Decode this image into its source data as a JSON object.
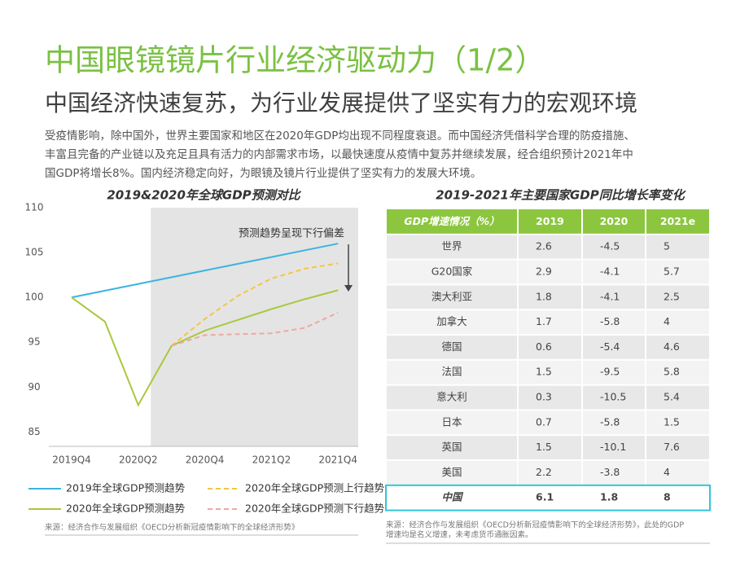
{
  "header": {
    "title": "中国眼镜镜片行业经济驱动力（1/2）",
    "subtitle": "中国经济快速复苏，为行业发展提供了坚实有力的宏观环境"
  },
  "paragraph": [
    "受疫情影响，除中国外，世界主要国家和地区在2020年GDP均出现不同程度衰退。而中国经济凭借科学合理的防疫措施、",
    "丰富且完备的产业链以及充足且具有活力的内部需求市场，以最快速度从疫情中复苏并继续发展，经合组织预计2021年中",
    "国GDP将增长8%。国内经济稳定向好，为眼镜及镜片行业提供了坚实有力的发展大环境。"
  ],
  "chart_data": {
    "type": "line",
    "title": "2019&2020年全球GDP预测对比",
    "categories": [
      "2019Q4",
      null,
      "2020Q2",
      null,
      "2020Q4",
      null,
      "2021Q2",
      null,
      "2021Q4"
    ],
    "series": [
      {
        "name": "2019年全球GDP预测趋势",
        "color": "#3cb4e0",
        "dashed": false,
        "values": [
          100,
          100.75,
          101.5,
          102.25,
          103,
          103.75,
          104.5,
          105.25,
          106
        ]
      },
      {
        "name": "2020年全球GDP预测上行趋势",
        "color": "#f5c542",
        "dashed": true,
        "values": [
          null,
          null,
          null,
          94.6,
          97.6,
          100.2,
          102.1,
          103.2,
          103.8
        ]
      },
      {
        "name": "2020年全球GDP预测趋势",
        "color": "#a8c83c",
        "dashed": false,
        "values": [
          100,
          97.3,
          88,
          94.6,
          96.3,
          97.5,
          98.7,
          99.8,
          100.8
        ]
      },
      {
        "name": "2020年全球GDP预测下行趋势",
        "color": "#f0a8a0",
        "dashed": true,
        "values": [
          null,
          null,
          null,
          94.6,
          95.8,
          95.9,
          96,
          96.6,
          98.3
        ]
      }
    ],
    "ylim": [
      83.4,
      110
    ],
    "yticks": [
      85,
      90,
      95,
      100,
      105,
      110
    ],
    "annotation": "预测趋势呈现下行偏差",
    "source": "来源：经济合作与发展组织《OECD分析新冠疫情影响下的全球经济形势》"
  },
  "table": {
    "title": "2019-2021年主要国家GDP同比增长率变化",
    "header": [
      "GDP增速情况（%）",
      "2019",
      "2020",
      "2021e"
    ],
    "rows": [
      [
        "世界",
        2.6,
        -4.5,
        5
      ],
      [
        "G20国家",
        2.9,
        -4.1,
        5.7
      ],
      [
        "澳大利亚",
        1.8,
        -4.1,
        2.5
      ],
      [
        "加拿大",
        1.7,
        -5.8,
        4
      ],
      [
        "德国",
        0.6,
        -5.4,
        4.6
      ],
      [
        "法国",
        1.5,
        -9.5,
        5.8
      ],
      [
        "意大利",
        0.3,
        -10.5,
        5.4
      ],
      [
        "日本",
        0.7,
        -5.8,
        1.5
      ],
      [
        "英国",
        1.5,
        -10.1,
        7.6
      ],
      [
        "美国",
        2.2,
        -3.8,
        4
      ],
      [
        "中国",
        6.1,
        1.8,
        8
      ]
    ],
    "source": [
      "来源：经济合作与发展组织《OECD分析新冠疫情影响下的全球经济形势》，此处的GDP",
      "增速均是名义增速，未考虑货币通胀因素。"
    ]
  }
}
